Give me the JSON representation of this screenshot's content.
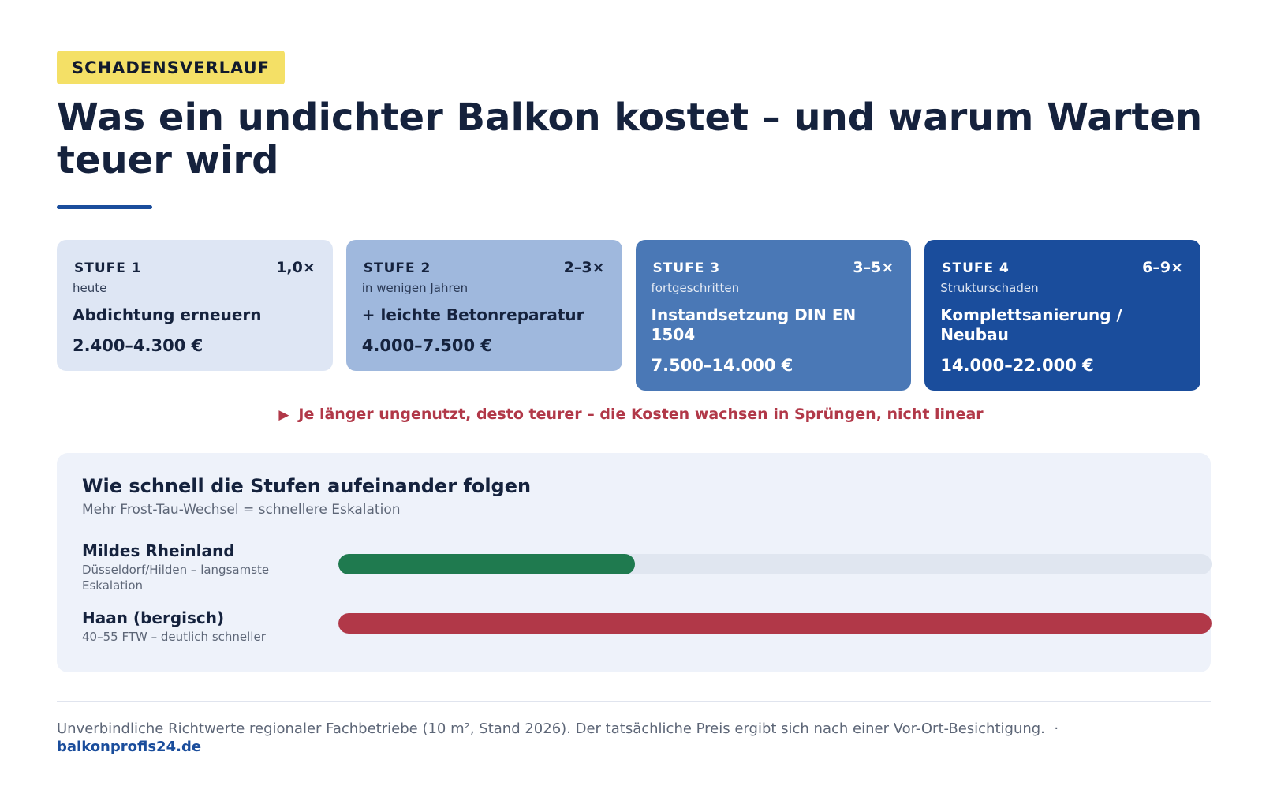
{
  "eyebrow": "SCHADENSVERLAUF",
  "headline": "Was ein undichter Balkon kostet – und warum Warten teuer wird",
  "stages": [
    {
      "label": "STUFE 1",
      "multiplier": "1,0×",
      "when": "heute",
      "action": "Abdichtung erneuern",
      "price": "2.400–4.300 €"
    },
    {
      "label": "STUFE 2",
      "multiplier": "2–3×",
      "when": "in wenigen Jahren",
      "action": "+ leichte Betonreparatur",
      "price": "4.000–7.500 €"
    },
    {
      "label": "STUFE 3",
      "multiplier": "3–5×",
      "when": "fortgeschritten",
      "action": "Instandsetzung DIN EN 1504",
      "price": "7.500–14.000 €"
    },
    {
      "label": "STUFE 4",
      "multiplier": "6–9×",
      "when": "Strukturschaden",
      "action": "Komplettsanierung / Neubau",
      "price": "14.000–22.000 €"
    }
  ],
  "warning": {
    "icon": "triangle-right-icon",
    "text": "Je länger ungenutzt, desto teurer – die Kosten wachsen in Sprüngen, nicht linear"
  },
  "comparison": {
    "title": "Wie schnell die Stufen aufeinander folgen",
    "subtitle": "Mehr Frost-Tau-Wechsel = schnellere Eskalation",
    "regions": [
      {
        "name": "Mildes Rheinland",
        "desc": "Düsseldorf/Hilden – langsamste Eskalation",
        "speed": 0.34,
        "color": "#1f7a4f"
      },
      {
        "name": "Haan (bergisch)",
        "desc": "40–55 FTW – deutlich schneller",
        "speed": 1.0,
        "color": "#b13848"
      }
    ]
  },
  "footer": {
    "note": "Unverbindliche Richtwerte regionaler Fachbetriebe (10 m², Stand 2026). Der tatsächliche Preis ergibt sich nach einer Vor-Ort-Besichtigung.",
    "separator": "·",
    "link": "balkonprofis24.de"
  }
}
